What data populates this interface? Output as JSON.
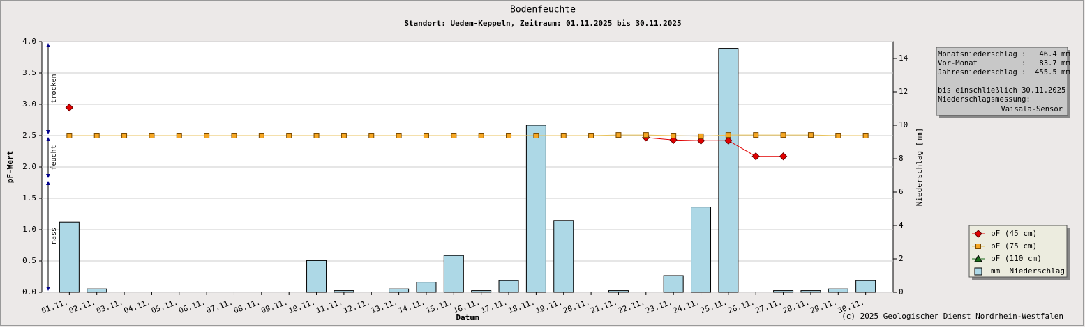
{
  "chart_data": {
    "type": "bar-line",
    "title": "Bodenfeuchte",
    "subtitle": "Standort: Uedem-Keppeln, Zeitraum: 01.11.2025 bis 30.11.2025",
    "x_label": "Datum",
    "y_label": "pF-Wert",
    "y2_label": "Niederschlag [mm]",
    "credit": "(c) 2025 Geologischer Dienst Nordrhein-Westfalen",
    "categories": [
      "01.11.",
      "02.11.",
      "03.11.",
      "04.11.",
      "05.11.",
      "06.11.",
      "07.11.",
      "08.11.",
      "09.11.",
      "10.11.",
      "11.11.",
      "12.11.",
      "13.11.",
      "14.11.",
      "15.11.",
      "16.11.",
      "17.11.",
      "18.11.",
      "19.11.",
      "20.11.",
      "21.11.",
      "22.11.",
      "23.11.",
      "24.11.",
      "25.11.",
      "26.11.",
      "27.11.",
      "28.11.",
      "29.11.",
      "30.11."
    ],
    "ylim": [
      0,
      4
    ],
    "yticks": [
      {
        "value": 0,
        "label": "0.0"
      },
      {
        "value": 0.5,
        "label": "0.5"
      },
      {
        "value": 1,
        "label": "1.0"
      },
      {
        "value": 1.5,
        "label": "1.5"
      },
      {
        "value": 2,
        "label": "2.0"
      },
      {
        "value": 2.5,
        "label": "2.5"
      },
      {
        "value": 3,
        "label": "3.0"
      },
      {
        "value": 3.5,
        "label": "3.5"
      },
      {
        "value": 4,
        "label": "4.0"
      }
    ],
    "y2lim": [
      0,
      15
    ],
    "y2ticks": [
      0,
      2,
      4,
      6,
      8,
      10,
      12,
      14
    ],
    "grid": true,
    "zones": [
      {
        "label": "trocken",
        "from": 2.5,
        "to": 4.0
      },
      {
        "label": "feucht",
        "from": 1.8,
        "to": 2.5
      },
      {
        "label": "nass",
        "from": 0,
        "to": 1.8
      }
    ],
    "series": [
      {
        "name": "pF (45 cm)",
        "type": "line",
        "marker": "diamond",
        "color": "#e00000",
        "line_color": "#e00000",
        "values": [
          2.95,
          null,
          null,
          null,
          null,
          null,
          null,
          null,
          null,
          null,
          null,
          null,
          null,
          null,
          null,
          null,
          null,
          null,
          null,
          null,
          null,
          2.47,
          2.43,
          2.42,
          2.42,
          2.17,
          2.17,
          null,
          null,
          null
        ]
      },
      {
        "name": "pF (75 cm)",
        "type": "line",
        "marker": "square",
        "color": "#f5a623",
        "line_color": "#e8c25a",
        "values": [
          2.5,
          2.5,
          2.5,
          2.5,
          2.5,
          2.5,
          2.5,
          2.5,
          2.5,
          2.5,
          2.5,
          2.5,
          2.5,
          2.5,
          2.5,
          2.5,
          2.5,
          2.5,
          2.5,
          2.5,
          2.51,
          2.51,
          2.5,
          2.49,
          2.51,
          2.51,
          2.51,
          2.51,
          2.5,
          2.5
        ]
      },
      {
        "name": "pF (110 cm)",
        "type": "line",
        "marker": "triangle",
        "color": "#1a6b1a",
        "line_color": "#1a6b1a",
        "values": [
          null,
          null,
          null,
          null,
          null,
          null,
          null,
          null,
          null,
          null,
          null,
          null,
          null,
          null,
          null,
          null,
          null,
          null,
          null,
          null,
          null,
          null,
          null,
          null,
          null,
          null,
          null,
          null,
          null,
          null
        ]
      },
      {
        "name": "mm  Niederschlag",
        "type": "bar",
        "axis": "y2",
        "color": "#add8e6",
        "values": [
          4.2,
          0.2,
          0,
          0,
          0,
          0,
          0,
          0,
          0,
          1.9,
          0.1,
          0,
          0.2,
          0.6,
          2.2,
          0.1,
          0.7,
          10.0,
          4.3,
          0,
          0.1,
          0,
          1.0,
          5.1,
          14.6,
          0,
          0.1,
          0.1,
          0.2,
          0.7
        ]
      }
    ],
    "legend": "lower right",
    "info_box": [
      "Monatsniederschlag :   46.4 mm",
      "Vor-Monat          :   83.7 mm",
      "Jahresniederschlag :  455.5 mm",
      "bis einschließlich 30.11.2025",
      "Niederschlagsmessung:",
      "Vaisala-Sensor"
    ]
  }
}
